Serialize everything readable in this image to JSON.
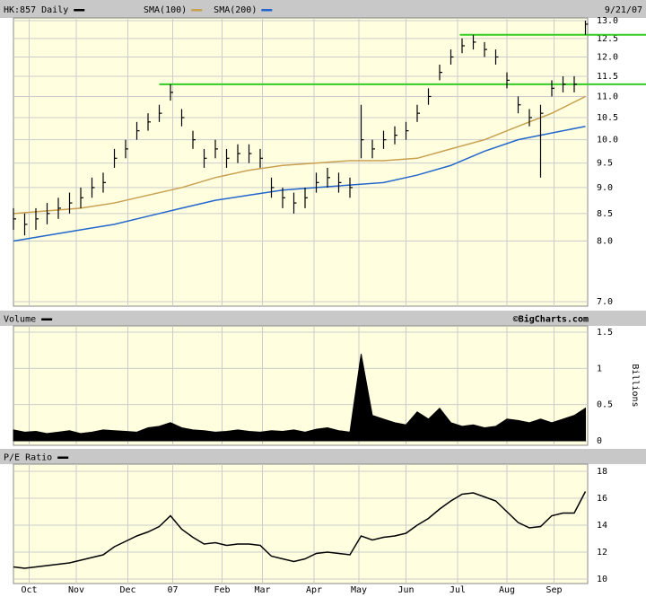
{
  "chart_data": [
    {
      "type": "ohlc",
      "title": "HK:857 Daily",
      "date": "9/21/07",
      "log_scale": true,
      "grid": true,
      "xlim": [
        0,
        256
      ],
      "ylim": [
        7,
        13
      ],
      "yticks": [
        {
          "value": 7,
          "label": "7.0"
        },
        {
          "value": 8,
          "label": "8.0"
        },
        {
          "value": 8.5,
          "label": "8.5"
        },
        {
          "value": 9,
          "label": "9.0"
        },
        {
          "value": 9.5,
          "label": "9.5"
        },
        {
          "value": 10,
          "label": "10.0"
        },
        {
          "value": 10.5,
          "label": "10.5"
        },
        {
          "value": 11,
          "label": "11.0"
        },
        {
          "value": 11.5,
          "label": "11.5"
        },
        {
          "value": 12,
          "label": "12.0"
        },
        {
          "value": 12.5,
          "label": "12.5"
        },
        {
          "value": 13,
          "label": "13.0"
        }
      ],
      "x": [
        0,
        5,
        10,
        15,
        20,
        25,
        30,
        35,
        40,
        45,
        50,
        55,
        60,
        65,
        70,
        75,
        80,
        85,
        90,
        95,
        100,
        105,
        110,
        115,
        120,
        125,
        130,
        135,
        140,
        145,
        150,
        155,
        160,
        165,
        170,
        175,
        180,
        185,
        190,
        195,
        200,
        205,
        210,
        215,
        220,
        225,
        230,
        235,
        240,
        245,
        250,
        255
      ],
      "color": "#000000",
      "high": [
        8.6,
        8.5,
        8.6,
        8.7,
        8.8,
        8.9,
        9.0,
        9.2,
        9.3,
        9.8,
        10.0,
        10.4,
        10.6,
        10.8,
        11.3,
        10.7,
        10.2,
        9.8,
        10.0,
        9.8,
        9.9,
        9.9,
        9.8,
        9.2,
        9.0,
        8.9,
        9.0,
        9.3,
        9.4,
        9.3,
        9.2,
        10.8,
        10.0,
        10.2,
        10.3,
        10.4,
        10.8,
        11.2,
        11.8,
        12.2,
        12.5,
        12.6,
        12.4,
        12.2,
        11.6,
        11.0,
        10.7,
        10.8,
        11.4,
        11.5,
        11.5,
        13.0
      ],
      "low": [
        8.2,
        8.1,
        8.2,
        8.3,
        8.4,
        8.5,
        8.6,
        8.8,
        8.9,
        9.4,
        9.6,
        10.0,
        10.2,
        10.4,
        10.9,
        10.3,
        9.8,
        9.4,
        9.6,
        9.4,
        9.5,
        9.5,
        9.4,
        8.8,
        8.6,
        8.5,
        8.6,
        8.9,
        9.0,
        8.9,
        8.8,
        9.6,
        9.6,
        9.8,
        9.9,
        10.0,
        10.4,
        10.8,
        11.4,
        11.8,
        12.1,
        12.2,
        12.0,
        11.8,
        11.2,
        10.6,
        10.3,
        9.2,
        11.0,
        11.1,
        11.1,
        12.6
      ],
      "close": [
        8.4,
        8.3,
        8.4,
        8.5,
        8.6,
        8.7,
        8.8,
        9.0,
        9.1,
        9.6,
        9.8,
        10.2,
        10.4,
        10.6,
        11.1,
        10.5,
        10.0,
        9.6,
        9.8,
        9.6,
        9.7,
        9.7,
        9.6,
        9.0,
        8.8,
        8.7,
        8.8,
        9.1,
        9.2,
        9.1,
        9.0,
        10.0,
        9.8,
        10.0,
        10.1,
        10.2,
        10.6,
        11.0,
        11.6,
        12.0,
        12.3,
        12.4,
        12.2,
        12.0,
        11.4,
        10.8,
        10.5,
        10.6,
        11.2,
        11.3,
        11.3,
        12.9
      ],
      "series": [
        {
          "name": "SMA(100)",
          "color": "#c8a050",
          "x": [
            0,
            15,
            30,
            45,
            60,
            75,
            90,
            105,
            120,
            135,
            150,
            165,
            180,
            195,
            210,
            225,
            240,
            255
          ],
          "values": [
            8.5,
            8.55,
            8.6,
            8.7,
            8.85,
            9.0,
            9.2,
            9.35,
            9.45,
            9.5,
            9.55,
            9.55,
            9.6,
            9.8,
            10.0,
            10.3,
            10.6,
            11.0
          ]
        },
        {
          "name": "SMA(200)",
          "color": "#2266cc",
          "x": [
            0,
            15,
            30,
            45,
            60,
            75,
            90,
            105,
            120,
            135,
            150,
            165,
            180,
            195,
            210,
            225,
            240,
            255
          ],
          "values": [
            8.0,
            8.1,
            8.2,
            8.3,
            8.45,
            8.6,
            8.75,
            8.85,
            8.95,
            9.0,
            9.05,
            9.1,
            9.25,
            9.45,
            9.75,
            10.0,
            10.15,
            10.3
          ]
        }
      ],
      "levels": [
        {
          "value": 12.6,
          "x": 199
        },
        {
          "value": 11.3,
          "x": 65
        }
      ],
      "level_color": "#33cc22"
    },
    {
      "type": "area",
      "title": "Volume",
      "credit": "©BigCharts.com",
      "y_label": "Billions",
      "color": "#000000",
      "grid": true,
      "xlim": [
        0,
        256
      ],
      "ylim": [
        0,
        1.5
      ],
      "yticks": [
        0,
        0.5,
        1,
        1.5
      ],
      "x": [
        0,
        5,
        10,
        15,
        20,
        25,
        30,
        35,
        40,
        45,
        50,
        55,
        60,
        65,
        70,
        75,
        80,
        85,
        90,
        95,
        100,
        105,
        110,
        115,
        120,
        125,
        130,
        135,
        140,
        145,
        150,
        155,
        160,
        165,
        170,
        175,
        180,
        185,
        190,
        195,
        200,
        205,
        210,
        215,
        220,
        225,
        230,
        235,
        240,
        245,
        250,
        255
      ],
      "values": [
        0.15,
        0.12,
        0.13,
        0.1,
        0.12,
        0.14,
        0.1,
        0.12,
        0.15,
        0.14,
        0.13,
        0.12,
        0.18,
        0.2,
        0.25,
        0.18,
        0.15,
        0.14,
        0.12,
        0.13,
        0.15,
        0.13,
        0.12,
        0.14,
        0.13,
        0.15,
        0.12,
        0.16,
        0.18,
        0.14,
        0.12,
        1.2,
        0.35,
        0.3,
        0.25,
        0.22,
        0.4,
        0.3,
        0.45,
        0.25,
        0.2,
        0.22,
        0.18,
        0.2,
        0.3,
        0.28,
        0.25,
        0.3,
        0.25,
        0.3,
        0.35,
        0.45
      ]
    },
    {
      "type": "line",
      "title": "P/E Ratio",
      "color": "#000000",
      "grid": true,
      "xlim": [
        0,
        256
      ],
      "ylim": [
        10,
        18
      ],
      "yticks": [
        10,
        12,
        14,
        16,
        18
      ],
      "xticks": [
        {
          "value": 7,
          "label": "Oct"
        },
        {
          "value": 28,
          "label": "Nov"
        },
        {
          "value": 51,
          "label": "Dec"
        },
        {
          "value": 71,
          "label": "07"
        },
        {
          "value": 93,
          "label": "Feb"
        },
        {
          "value": 111,
          "label": "Mar"
        },
        {
          "value": 134,
          "label": "Apr"
        },
        {
          "value": 154,
          "label": "May"
        },
        {
          "value": 175,
          "label": "Jun"
        },
        {
          "value": 198,
          "label": "Jul"
        },
        {
          "value": 220,
          "label": "Aug"
        },
        {
          "value": 241,
          "label": "Sep"
        }
      ],
      "x": [
        0,
        5,
        10,
        15,
        20,
        25,
        30,
        35,
        40,
        45,
        50,
        55,
        60,
        65,
        70,
        75,
        80,
        85,
        90,
        95,
        100,
        105,
        110,
        115,
        120,
        125,
        130,
        135,
        140,
        145,
        150,
        155,
        160,
        165,
        170,
        175,
        180,
        185,
        190,
        195,
        200,
        205,
        210,
        215,
        220,
        225,
        230,
        235,
        240,
        245,
        250,
        255
      ],
      "values": [
        10.9,
        10.8,
        10.9,
        11.0,
        11.1,
        11.2,
        11.4,
        11.6,
        11.8,
        12.4,
        12.8,
        13.2,
        13.5,
        13.9,
        14.7,
        13.7,
        13.1,
        12.6,
        12.7,
        12.5,
        12.6,
        12.6,
        12.5,
        11.7,
        11.5,
        11.3,
        11.5,
        11.9,
        12.0,
        11.9,
        11.8,
        13.2,
        12.9,
        13.1,
        13.2,
        13.4,
        14.0,
        14.5,
        15.2,
        15.8,
        16.3,
        16.4,
        16.1,
        15.8,
        15.0,
        14.2,
        13.8,
        13.9,
        14.7,
        14.9,
        14.9,
        16.5
      ]
    }
  ]
}
